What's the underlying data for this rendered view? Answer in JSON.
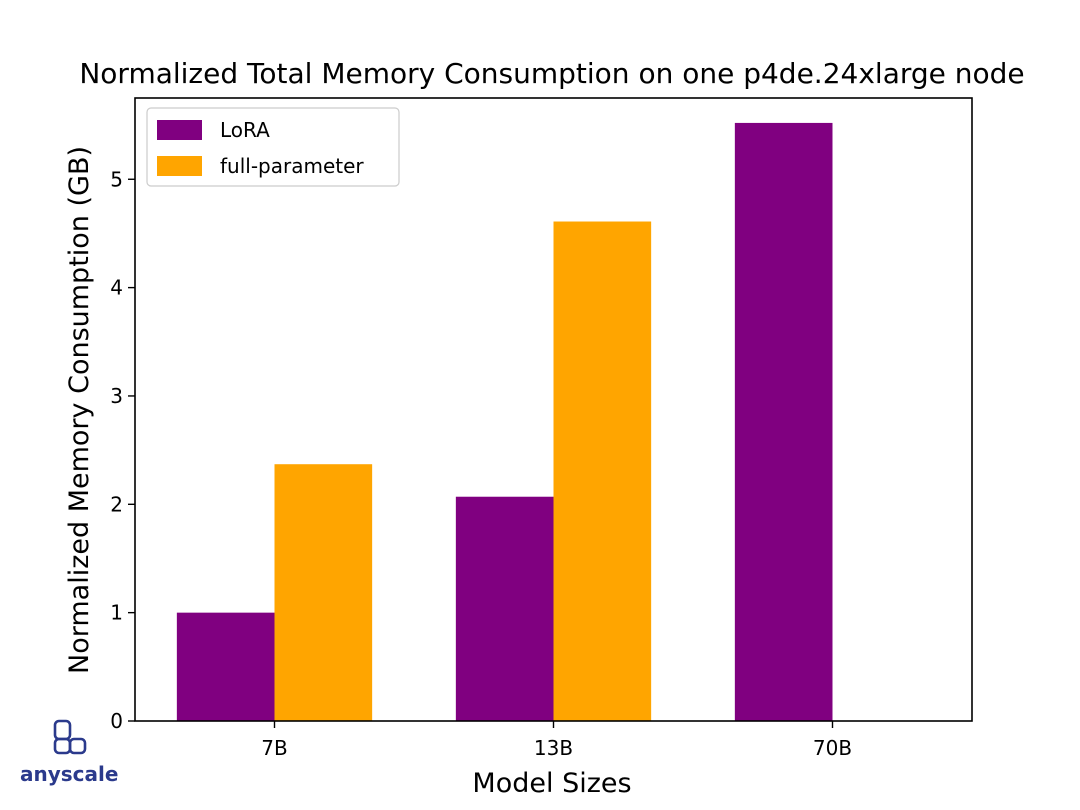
{
  "chart_data": {
    "type": "bar",
    "title": "Normalized Total Memory Consumption on one p4de.24xlarge node",
    "xlabel": "Model Sizes",
    "ylabel": "Normalized Memory Consumption (GB)",
    "categories": [
      "7B",
      "13B",
      "70B"
    ],
    "ylim": [
      0,
      5.75
    ],
    "yticks": [
      0,
      1,
      2,
      3,
      4,
      5
    ],
    "legend_position": "top-left",
    "grid": false,
    "series": [
      {
        "name": "LoRA",
        "color": "#800080",
        "values": [
          1.0,
          2.07,
          5.52
        ]
      },
      {
        "name": "full-parameter",
        "color": "#ffa500",
        "values": [
          2.37,
          4.61,
          null
        ]
      }
    ]
  },
  "logo": {
    "text": "anyscale",
    "color": "#2b3a8c"
  }
}
